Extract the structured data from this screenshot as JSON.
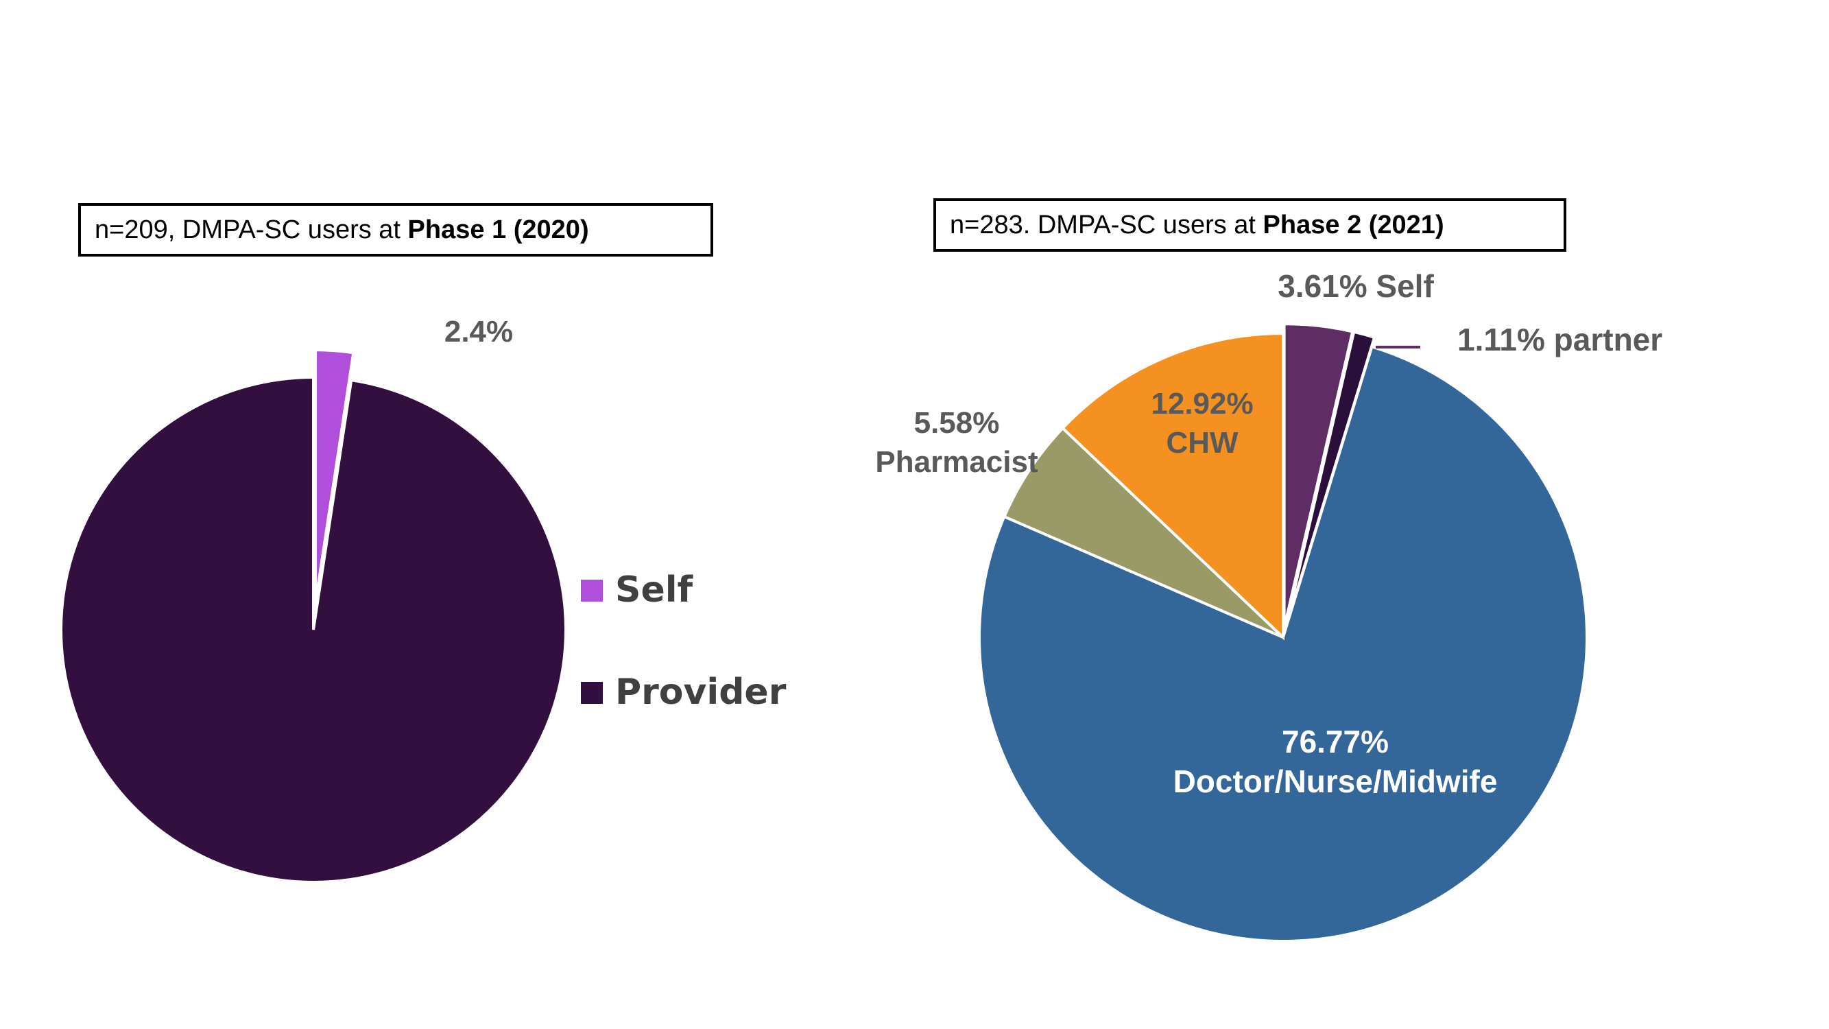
{
  "chart_data": [
    {
      "type": "pie",
      "title_prefix": "n=209, DMPA-SC users at ",
      "title_bold": "Phase 1 (2020)",
      "slices": [
        {
          "label": "Self",
          "value": 2.4,
          "value_label": "2.4%",
          "color": "#b04fdb",
          "exploded": true
        },
        {
          "label": "Provider",
          "value": 97.6,
          "value_label": "",
          "color": "#330f40",
          "exploded": false
        }
      ],
      "legend": {
        "position": "right",
        "items": [
          "Self",
          "Provider"
        ]
      }
    },
    {
      "type": "pie",
      "title_prefix": "n=283. DMPA-SC users at ",
      "title_bold": "Phase 2 (2021)",
      "slices": [
        {
          "label": "Self",
          "value": 3.61,
          "label_line1": "3.61% Self",
          "label_line2": "",
          "color": "#5e2d63",
          "exploded": true
        },
        {
          "label": "partner",
          "value": 1.11,
          "label_line1": "1.11% partner",
          "label_line2": "",
          "color": "#2a0f3a",
          "exploded": true
        },
        {
          "label": "Doctor/Nurse/Midwife",
          "value": 76.77,
          "label_line1": "76.77%",
          "label_line2": "Doctor/Nurse/Midwife",
          "color": "#336699",
          "exploded": false
        },
        {
          "label": "Pharmacist",
          "value": 5.58,
          "label_line1": "5.58%",
          "label_line2": "Pharmacist",
          "color": "#9a9a66",
          "exploded": false
        },
        {
          "label": "CHW",
          "value": 12.92,
          "label_line1": "12.92%",
          "label_line2": "CHW",
          "color": "#f49120",
          "exploded": false
        }
      ]
    }
  ]
}
